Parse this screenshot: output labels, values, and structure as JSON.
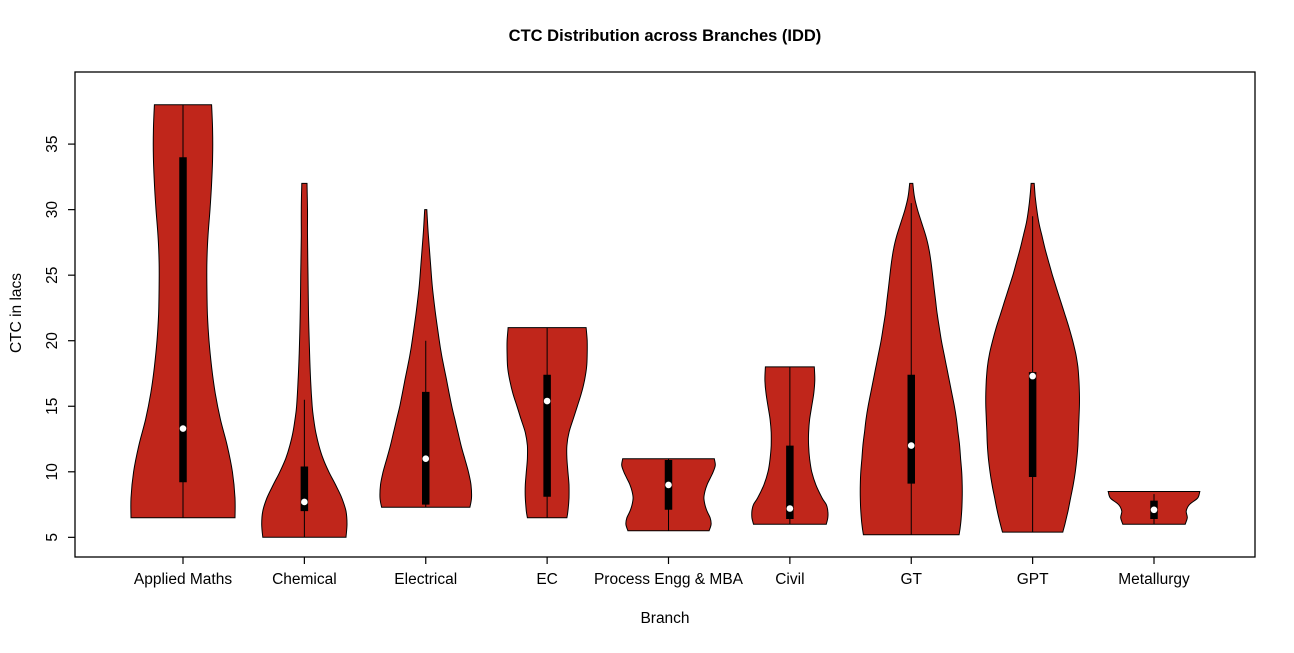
{
  "chart_data": {
    "type": "violin",
    "title": "CTC Distribution across Branches (IDD)",
    "xlabel": "Branch",
    "ylabel": "CTC in lacs",
    "ylim": [
      3.5,
      40.5
    ],
    "yticks": [
      5,
      10,
      15,
      20,
      25,
      30,
      35
    ],
    "grid": false,
    "legend": "none",
    "violin_fill": "#C0261B",
    "violin_stroke": "#000000",
    "box_color": "#000000",
    "median_dot_color": "#ffffff",
    "categories": [
      "Applied Maths",
      "Chemical",
      "Electrical",
      "EC",
      "Process Engg & MBA",
      "Civil",
      "GT",
      "GPT",
      "Metallurgy"
    ],
    "violins": [
      {
        "name": "Applied Maths",
        "min": 6.5,
        "max": 38,
        "q1": 9.2,
        "q3": 34,
        "median": 13.3,
        "whisker_low": 6.5,
        "whisker_high": 38,
        "profile": [
          [
            6.5,
            1.0
          ],
          [
            8,
            1.0
          ],
          [
            10,
            0.95
          ],
          [
            12,
            0.85
          ],
          [
            14,
            0.72
          ],
          [
            16,
            0.62
          ],
          [
            18,
            0.55
          ],
          [
            20,
            0.5
          ],
          [
            22,
            0.47
          ],
          [
            24,
            0.46
          ],
          [
            26,
            0.46
          ],
          [
            28,
            0.48
          ],
          [
            30,
            0.52
          ],
          [
            32,
            0.55
          ],
          [
            34,
            0.57
          ],
          [
            36,
            0.57
          ],
          [
            38,
            0.55
          ]
        ]
      },
      {
        "name": "Chemical",
        "min": 5,
        "max": 32,
        "q1": 7.0,
        "q3": 10.4,
        "median": 7.7,
        "whisker_low": 5,
        "whisker_high": 15.5,
        "profile": [
          [
            5,
            0.8
          ],
          [
            6,
            0.82
          ],
          [
            7,
            0.8
          ],
          [
            8,
            0.72
          ],
          [
            9,
            0.6
          ],
          [
            10,
            0.47
          ],
          [
            11,
            0.36
          ],
          [
            12,
            0.28
          ],
          [
            13,
            0.22
          ],
          [
            14,
            0.18
          ],
          [
            15,
            0.15
          ],
          [
            17,
            0.12
          ],
          [
            19,
            0.1
          ],
          [
            22,
            0.08
          ],
          [
            25,
            0.07
          ],
          [
            28,
            0.06
          ],
          [
            30,
            0.06
          ],
          [
            32,
            0.05
          ]
        ]
      },
      {
        "name": "Electrical",
        "min": 7.3,
        "max": 30,
        "q1": 7.5,
        "q3": 16.1,
        "median": 11,
        "whisker_low": 7.3,
        "whisker_high": 20,
        "profile": [
          [
            7.3,
            0.85
          ],
          [
            8,
            0.88
          ],
          [
            9,
            0.87
          ],
          [
            10,
            0.82
          ],
          [
            11,
            0.75
          ],
          [
            12,
            0.68
          ],
          [
            13,
            0.62
          ],
          [
            14,
            0.56
          ],
          [
            15,
            0.5
          ],
          [
            16,
            0.45
          ],
          [
            17,
            0.4
          ],
          [
            18,
            0.35
          ],
          [
            19,
            0.3
          ],
          [
            20,
            0.26
          ],
          [
            22,
            0.19
          ],
          [
            24,
            0.13
          ],
          [
            26,
            0.09
          ],
          [
            28,
            0.05
          ],
          [
            30,
            0.02
          ]
        ]
      },
      {
        "name": "EC",
        "min": 6.5,
        "max": 21,
        "q1": 8.1,
        "q3": 17.4,
        "median": 15.4,
        "whisker_low": 6.5,
        "whisker_high": 21,
        "profile": [
          [
            6.5,
            0.38
          ],
          [
            7,
            0.4
          ],
          [
            8,
            0.42
          ],
          [
            9,
            0.42
          ],
          [
            10,
            0.4
          ],
          [
            11,
            0.38
          ],
          [
            12,
            0.38
          ],
          [
            13,
            0.42
          ],
          [
            14,
            0.5
          ],
          [
            15,
            0.58
          ],
          [
            16,
            0.66
          ],
          [
            17,
            0.72
          ],
          [
            18,
            0.76
          ],
          [
            19,
            0.77
          ],
          [
            20,
            0.77
          ],
          [
            21,
            0.75
          ]
        ]
      },
      {
        "name": "Process Engg & MBA",
        "min": 5.5,
        "max": 11,
        "q1": 7.1,
        "q3": 10.9,
        "median": 9.0,
        "whisker_low": 5.5,
        "whisker_high": 11,
        "profile": [
          [
            5.5,
            0.78
          ],
          [
            6,
            0.82
          ],
          [
            6.5,
            0.8
          ],
          [
            7,
            0.74
          ],
          [
            7.5,
            0.7
          ],
          [
            8,
            0.68
          ],
          [
            8.5,
            0.7
          ],
          [
            9,
            0.74
          ],
          [
            9.5,
            0.8
          ],
          [
            10,
            0.86
          ],
          [
            10.5,
            0.9
          ],
          [
            11,
            0.88
          ]
        ]
      },
      {
        "name": "Civil",
        "min": 6,
        "max": 18,
        "q1": 6.4,
        "q3": 12.0,
        "median": 7.2,
        "whisker_low": 6,
        "whisker_high": 18,
        "profile": [
          [
            6,
            0.7
          ],
          [
            6.5,
            0.73
          ],
          [
            7,
            0.73
          ],
          [
            7.5,
            0.7
          ],
          [
            8,
            0.62
          ],
          [
            9,
            0.5
          ],
          [
            10,
            0.42
          ],
          [
            11,
            0.38
          ],
          [
            12,
            0.36
          ],
          [
            13,
            0.36
          ],
          [
            14,
            0.38
          ],
          [
            15,
            0.42
          ],
          [
            16,
            0.46
          ],
          [
            17,
            0.48
          ],
          [
            18,
            0.47
          ]
        ]
      },
      {
        "name": "GT",
        "min": 5.2,
        "max": 32,
        "q1": 9.1,
        "q3": 17.4,
        "median": 12.0,
        "whisker_low": 5.2,
        "whisker_high": 30.5,
        "profile": [
          [
            5.2,
            0.92
          ],
          [
            6,
            0.95
          ],
          [
            7,
            0.97
          ],
          [
            8,
            0.98
          ],
          [
            9,
            0.98
          ],
          [
            10,
            0.97
          ],
          [
            11,
            0.95
          ],
          [
            12,
            0.93
          ],
          [
            13,
            0.9
          ],
          [
            14,
            0.87
          ],
          [
            15,
            0.83
          ],
          [
            16,
            0.78
          ],
          [
            17,
            0.73
          ],
          [
            18,
            0.68
          ],
          [
            19,
            0.63
          ],
          [
            20,
            0.58
          ],
          [
            21,
            0.54
          ],
          [
            22,
            0.5
          ],
          [
            23,
            0.47
          ],
          [
            24,
            0.44
          ],
          [
            25,
            0.41
          ],
          [
            26,
            0.38
          ],
          [
            27,
            0.34
          ],
          [
            28,
            0.28
          ],
          [
            29,
            0.2
          ],
          [
            30,
            0.12
          ],
          [
            31,
            0.06
          ],
          [
            32,
            0.03
          ]
        ]
      },
      {
        "name": "GPT",
        "min": 5.4,
        "max": 32,
        "q1": 9.6,
        "q3": 17.6,
        "median": 17.3,
        "whisker_low": 5.4,
        "whisker_high": 29.5,
        "profile": [
          [
            5.4,
            0.58
          ],
          [
            6,
            0.62
          ],
          [
            7,
            0.68
          ],
          [
            8,
            0.73
          ],
          [
            9,
            0.78
          ],
          [
            10,
            0.82
          ],
          [
            11,
            0.85
          ],
          [
            12,
            0.87
          ],
          [
            13,
            0.88
          ],
          [
            14,
            0.89
          ],
          [
            15,
            0.9
          ],
          [
            16,
            0.9
          ],
          [
            17,
            0.89
          ],
          [
            18,
            0.87
          ],
          [
            19,
            0.83
          ],
          [
            20,
            0.77
          ],
          [
            21,
            0.7
          ],
          [
            22,
            0.62
          ],
          [
            23,
            0.54
          ],
          [
            24,
            0.46
          ],
          [
            25,
            0.38
          ],
          [
            26,
            0.31
          ],
          [
            27,
            0.24
          ],
          [
            28,
            0.18
          ],
          [
            29,
            0.12
          ],
          [
            30,
            0.08
          ],
          [
            31,
            0.05
          ],
          [
            32,
            0.03
          ]
        ]
      },
      {
        "name": "Metallurgy",
        "min": 6,
        "max": 8.5,
        "q1": 6.4,
        "q3": 7.8,
        "median": 7.1,
        "whisker_low": 6,
        "whisker_high": 8.3,
        "profile": [
          [
            6,
            0.6
          ],
          [
            6.5,
            0.64
          ],
          [
            7,
            0.62
          ],
          [
            7.5,
            0.68
          ],
          [
            8,
            0.84
          ],
          [
            8.5,
            0.88
          ]
        ]
      }
    ]
  }
}
